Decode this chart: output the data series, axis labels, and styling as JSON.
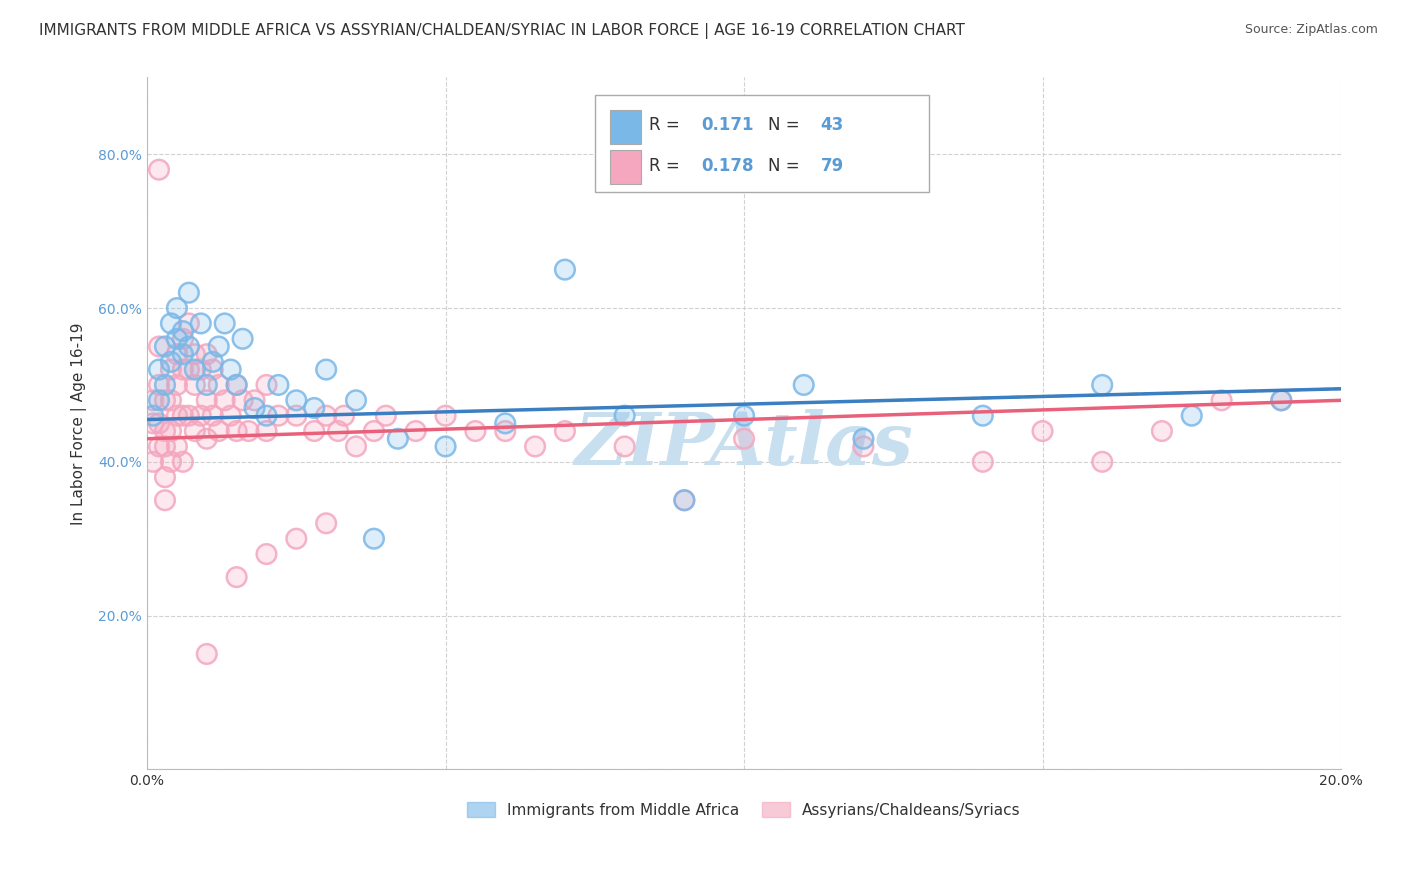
{
  "title": "IMMIGRANTS FROM MIDDLE AFRICA VS ASSYRIAN/CHALDEAN/SYRIAC IN LABOR FORCE | AGE 16-19 CORRELATION CHART",
  "source": "Source: ZipAtlas.com",
  "ylabel": "In Labor Force | Age 16-19",
  "xlim": [
    0.0,
    0.2
  ],
  "ylim": [
    0.0,
    0.9
  ],
  "x_ticks": [
    0.0,
    0.05,
    0.1,
    0.15,
    0.2
  ],
  "x_tick_labels": [
    "0.0%",
    "",
    "",
    "",
    "20.0%"
  ],
  "y_ticks": [
    0.0,
    0.2,
    0.4,
    0.6,
    0.8
  ],
  "y_tick_labels": [
    "",
    "20.0%",
    "40.0%",
    "60.0%",
    "80.0%"
  ],
  "series1_color": "#7ab8e8",
  "series2_color": "#f4a7bf",
  "series1_label": "Immigrants from Middle Africa",
  "series2_label": "Assyrians/Chaldeans/Syriacs",
  "r1": 0.171,
  "n1": 43,
  "r2": 0.178,
  "n2": 79,
  "trend1_color": "#3a7fc1",
  "trend2_color": "#e8607a",
  "background_color": "#ffffff",
  "grid_color": "#cccccc",
  "title_fontsize": 11,
  "axis_label_fontsize": 11,
  "tick_fontsize": 10,
  "legend_fontsize": 12,
  "watermark_color": "#c8dff0",
  "watermark_fontsize": 52,
  "s1_x": [
    0.001,
    0.002,
    0.002,
    0.003,
    0.003,
    0.004,
    0.004,
    0.005,
    0.005,
    0.006,
    0.006,
    0.007,
    0.007,
    0.008,
    0.009,
    0.01,
    0.011,
    0.012,
    0.013,
    0.014,
    0.015,
    0.016,
    0.018,
    0.02,
    0.022,
    0.025,
    0.028,
    0.03,
    0.035,
    0.038,
    0.042,
    0.05,
    0.06,
    0.07,
    0.08,
    0.09,
    0.1,
    0.11,
    0.12,
    0.14,
    0.16,
    0.175,
    0.19
  ],
  "s1_y": [
    0.46,
    0.52,
    0.48,
    0.55,
    0.5,
    0.58,
    0.53,
    0.56,
    0.6,
    0.54,
    0.57,
    0.62,
    0.55,
    0.52,
    0.58,
    0.5,
    0.53,
    0.55,
    0.58,
    0.52,
    0.5,
    0.56,
    0.47,
    0.46,
    0.5,
    0.48,
    0.47,
    0.52,
    0.48,
    0.3,
    0.43,
    0.42,
    0.45,
    0.65,
    0.46,
    0.35,
    0.46,
    0.5,
    0.43,
    0.46,
    0.5,
    0.46,
    0.48
  ],
  "s2_x": [
    0.001,
    0.001,
    0.001,
    0.002,
    0.002,
    0.002,
    0.002,
    0.003,
    0.003,
    0.003,
    0.003,
    0.003,
    0.004,
    0.004,
    0.004,
    0.004,
    0.005,
    0.005,
    0.005,
    0.005,
    0.006,
    0.006,
    0.006,
    0.006,
    0.007,
    0.007,
    0.007,
    0.008,
    0.008,
    0.008,
    0.009,
    0.009,
    0.01,
    0.01,
    0.01,
    0.011,
    0.011,
    0.012,
    0.012,
    0.013,
    0.014,
    0.015,
    0.015,
    0.016,
    0.017,
    0.018,
    0.02,
    0.02,
    0.022,
    0.025,
    0.028,
    0.03,
    0.032,
    0.033,
    0.035,
    0.038,
    0.04,
    0.045,
    0.05,
    0.055,
    0.06,
    0.065,
    0.07,
    0.08,
    0.09,
    0.1,
    0.12,
    0.14,
    0.15,
    0.16,
    0.17,
    0.18,
    0.19,
    0.002,
    0.01,
    0.015,
    0.02,
    0.025,
    0.03
  ],
  "s2_y": [
    0.48,
    0.45,
    0.4,
    0.55,
    0.5,
    0.45,
    0.42,
    0.48,
    0.44,
    0.42,
    0.38,
    0.35,
    0.52,
    0.48,
    0.44,
    0.4,
    0.54,
    0.5,
    0.46,
    0.42,
    0.56,
    0.52,
    0.46,
    0.4,
    0.58,
    0.52,
    0.46,
    0.54,
    0.5,
    0.44,
    0.52,
    0.46,
    0.54,
    0.48,
    0.43,
    0.52,
    0.46,
    0.5,
    0.44,
    0.48,
    0.46,
    0.5,
    0.44,
    0.48,
    0.44,
    0.48,
    0.5,
    0.44,
    0.46,
    0.46,
    0.44,
    0.46,
    0.44,
    0.46,
    0.42,
    0.44,
    0.46,
    0.44,
    0.46,
    0.44,
    0.44,
    0.42,
    0.44,
    0.42,
    0.35,
    0.43,
    0.42,
    0.4,
    0.44,
    0.4,
    0.44,
    0.48,
    0.48,
    0.78,
    0.15,
    0.25,
    0.28,
    0.3,
    0.32
  ]
}
